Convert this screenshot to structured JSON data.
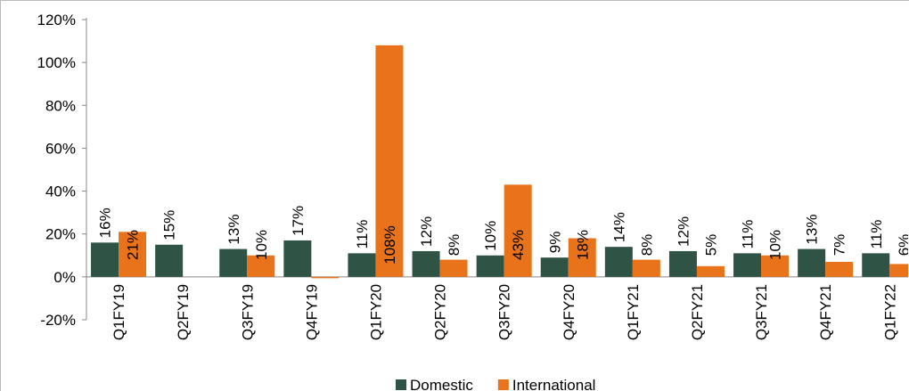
{
  "chart_data": {
    "type": "bar",
    "categories": [
      "Q1FY19",
      "Q2FY19",
      "Q3FY19",
      "Q4FY19",
      "Q1FY20",
      "Q2FY20",
      "Q3FY20",
      "Q4FY20",
      "Q1FY21",
      "Q2FY21",
      "Q3FY21",
      "Q4FY21",
      "Q1FY22"
    ],
    "series": [
      {
        "name": "Domestic",
        "color": "#2f5446",
        "values": [
          16,
          15,
          13,
          17,
          11,
          12,
          10,
          9,
          14,
          12,
          11,
          13,
          11
        ],
        "value_labels": [
          "16%",
          "15%",
          "13%",
          "17%",
          "11%",
          "12%",
          "10%",
          "9%",
          "14%",
          "12%",
          "11%",
          "13%",
          "11%"
        ]
      },
      {
        "name": "International",
        "color": "#e8731b",
        "values": [
          21,
          null,
          10,
          0,
          108,
          8,
          43,
          18,
          8,
          5,
          10,
          7,
          6
        ],
        "value_labels": [
          "21%",
          null,
          "10%",
          null,
          "108%",
          "8%",
          "43%",
          "18%",
          "8%",
          "5%",
          "10%",
          "7%",
          "6%"
        ]
      }
    ],
    "ylim": [
      -20,
      120
    ],
    "yticks": [
      {
        "value": -20,
        "label": "-20%"
      },
      {
        "value": 0,
        "label": "0%"
      },
      {
        "value": 20,
        "label": "20%"
      },
      {
        "value": 40,
        "label": "40%"
      },
      {
        "value": 60,
        "label": "60%"
      },
      {
        "value": 80,
        "label": "80%"
      },
      {
        "value": 100,
        "label": "100%"
      },
      {
        "value": 120,
        "label": "120%"
      }
    ],
    "legend": "bottom"
  }
}
